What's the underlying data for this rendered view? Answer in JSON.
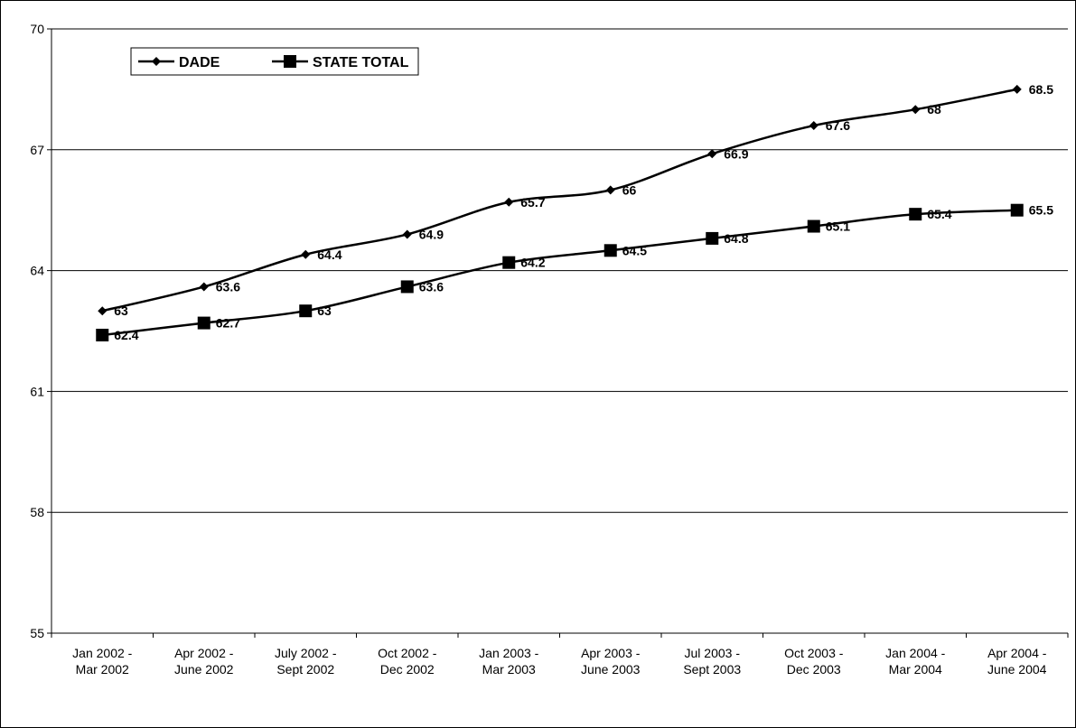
{
  "chart_data": {
    "type": "line",
    "title": "",
    "xlabel": "",
    "ylabel": "",
    "ylim": [
      55,
      70
    ],
    "yticks": [
      55,
      58,
      61,
      64,
      67,
      70
    ],
    "grid": true,
    "legend_placement": "top-left",
    "categories": [
      [
        "Jan 2002 -",
        "Mar 2002"
      ],
      [
        "Apr 2002 -",
        "June 2002"
      ],
      [
        "July 2002 -",
        "Sept 2002"
      ],
      [
        "Oct 2002 -",
        "Dec 2002"
      ],
      [
        "Jan 2003 -",
        "Mar 2003"
      ],
      [
        "Apr 2003 -",
        "June 2003"
      ],
      [
        "Jul 2003 -",
        "Sept 2003"
      ],
      [
        "Oct 2003 -",
        "Dec 2003"
      ],
      [
        "Jan 2004 -",
        "Mar 2004"
      ],
      [
        "Apr 2004 -",
        "June 2004"
      ]
    ],
    "series": [
      {
        "name": "DADE",
        "marker": "diamond",
        "values": [
          63,
          63.6,
          64.4,
          64.9,
          65.7,
          66,
          66.9,
          67.6,
          68,
          68.5
        ],
        "labels": [
          "63",
          "63.6",
          "64.4",
          "64.9",
          "65.7",
          "66",
          "66.9",
          "67.6",
          "68",
          "68.5"
        ]
      },
      {
        "name": "STATE TOTAL",
        "marker": "square",
        "values": [
          62.4,
          62.7,
          63,
          63.6,
          64.2,
          64.5,
          64.8,
          65.1,
          65.4,
          65.5
        ],
        "labels": [
          "62.4",
          "62.7",
          "63",
          "63.6",
          "64.2",
          "64.5",
          "64.8",
          "65.1",
          "65.4",
          "65.5"
        ]
      }
    ],
    "colors": {
      "line": "#000000",
      "grid": "#000000"
    }
  }
}
